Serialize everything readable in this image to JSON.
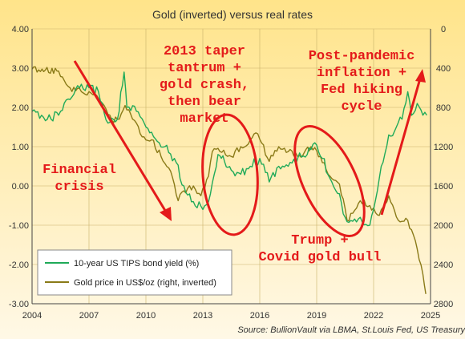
{
  "chart_data": {
    "type": "line",
    "title": "Gold (inverted) versus real rates",
    "source": "Source: BullionVault via LBMA, St.Louis Fed, US Treasury",
    "xlabel": "",
    "ylabel_left": "",
    "ylabel_right": "",
    "x_ticks": [
      "2004",
      "2007",
      "2010",
      "2013",
      "2016",
      "2019",
      "2022",
      "2025"
    ],
    "x_range": [
      2004,
      2025
    ],
    "left_axis": {
      "ticks": [
        "4.00",
        "3.00",
        "2.00",
        "1.00",
        "0.00",
        "-1.00",
        "-2.00",
        "-3.00"
      ],
      "range": [
        -3,
        4
      ]
    },
    "right_axis": {
      "ticks": [
        "0",
        "400",
        "800",
        "1200",
        "1600",
        "2000",
        "2400",
        "2800"
      ],
      "range": [
        0,
        2800
      ],
      "inverted": true
    },
    "grid": true,
    "legend_position": "bottom-left",
    "colors": {
      "tips": "#1faa59",
      "gold": "#8a7a18",
      "annotation": "#e41a1a",
      "background_top": "#ffe48a",
      "background_bottom": "#fff8e6"
    },
    "series": [
      {
        "name": "10-year US TIPS bond yield (%)",
        "axis": "left",
        "x": [
          2004.0,
          2004.5,
          2005.0,
          2005.5,
          2006.0,
          2006.5,
          2007.0,
          2007.5,
          2008.0,
          2008.5,
          2008.85,
          2009.0,
          2009.5,
          2010.0,
          2010.5,
          2011.0,
          2011.5,
          2012.0,
          2012.5,
          2013.0,
          2013.4,
          2013.8,
          2014.5,
          2015.0,
          2015.5,
          2016.0,
          2016.5,
          2017.0,
          2017.5,
          2018.0,
          2018.5,
          2018.9,
          2019.3,
          2019.8,
          2020.2,
          2020.5,
          2020.9,
          2021.3,
          2021.8,
          2022.0,
          2022.4,
          2022.8,
          2023.2,
          2023.5,
          2023.8,
          2024.0,
          2024.3,
          2024.6,
          2024.8
        ],
        "values": [
          1.9,
          1.8,
          1.7,
          1.9,
          2.2,
          2.5,
          2.5,
          2.4,
          1.6,
          1.7,
          2.9,
          2.0,
          1.9,
          1.5,
          1.2,
          1.0,
          0.7,
          0.0,
          -0.4,
          -0.6,
          -0.2,
          0.8,
          0.4,
          0.3,
          0.5,
          0.7,
          0.1,
          0.5,
          0.5,
          0.7,
          0.8,
          1.1,
          0.7,
          0.1,
          -0.2,
          -0.8,
          -0.9,
          -0.8,
          -1.0,
          -0.6,
          0.5,
          1.3,
          1.5,
          1.7,
          2.4,
          1.8,
          2.1,
          1.8,
          1.8
        ]
      },
      {
        "name": "Gold price in US$/oz (right, inverted)",
        "axis": "right",
        "x": [
          2004.0,
          2004.7,
          2005.4,
          2006.0,
          2006.6,
          2007.2,
          2007.8,
          2008.2,
          2008.6,
          2008.9,
          2009.3,
          2009.8,
          2010.3,
          2010.8,
          2011.3,
          2011.7,
          2012.0,
          2012.5,
          2012.9,
          2013.3,
          2013.5,
          2013.9,
          2014.5,
          2015.0,
          2015.5,
          2015.9,
          2016.5,
          2017.0,
          2017.5,
          2018.0,
          2018.7,
          2019.2,
          2019.7,
          2020.2,
          2020.6,
          2021.0,
          2021.3,
          2021.8,
          2022.3,
          2022.8,
          2023.3,
          2023.8,
          2024.1,
          2024.4,
          2024.6,
          2024.75
        ],
        "values": [
          410,
          420,
          430,
          600,
          640,
          670,
          780,
          930,
          920,
          780,
          920,
          1100,
          1130,
          1300,
          1450,
          1750,
          1650,
          1600,
          1700,
          1500,
          1250,
          1250,
          1300,
          1200,
          1130,
          1070,
          1350,
          1200,
          1250,
          1300,
          1200,
          1300,
          1500,
          1580,
          1950,
          1850,
          1750,
          1800,
          1900,
          1700,
          1950,
          1950,
          2100,
          2350,
          2500,
          2700
        ]
      }
    ],
    "annotations": [
      {
        "text": "2013 taper\ntantrum +\ngold crash,\nthen bear\nmarket"
      },
      {
        "text": "Post-pandemic\ninflation +\nFed hiking\ncycle"
      },
      {
        "text": "Financial\ncrisis"
      },
      {
        "text": "Trump +\nCovid gold bull"
      }
    ]
  }
}
